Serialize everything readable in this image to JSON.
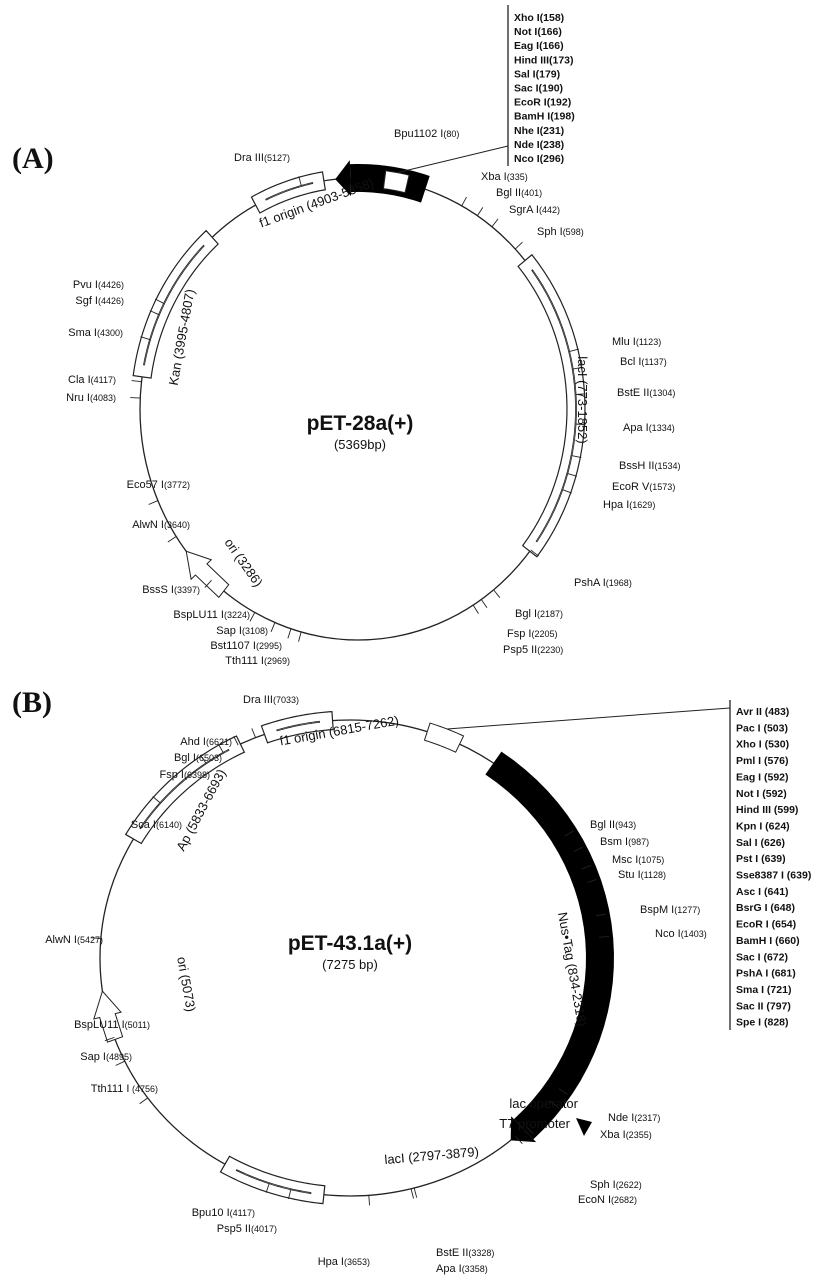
{
  "maps": [
    {
      "panel": "(A)",
      "name": "pET-28a(+)",
      "size": "(5369bp)",
      "mcs": [
        {
          "name": "Xho I",
          "pos": "(158)"
        },
        {
          "name": "Not I",
          "pos": "(166)"
        },
        {
          "name": "Eag I",
          "pos": "(166)"
        },
        {
          "name": "Hind III",
          "pos": "(173)"
        },
        {
          "name": "Sal I",
          "pos": "(179)"
        },
        {
          "name": "Sac I",
          "pos": "(190)"
        },
        {
          "name": "EcoR I",
          "pos": "(192)"
        },
        {
          "name": "BamH I",
          "pos": "(198)"
        },
        {
          "name": "Nhe I",
          "pos": "(231)"
        },
        {
          "name": "Nde I",
          "pos": "(238)"
        },
        {
          "name": "Nco I",
          "pos": "(296)"
        }
      ],
      "sites": [
        {
          "name": "Bpu1102 I",
          "pos": "(80)"
        },
        {
          "name": "Xba I",
          "pos": "(335)"
        },
        {
          "name": "Bgl II",
          "pos": "(401)"
        },
        {
          "name": "SgrA I",
          "pos": "(442)"
        },
        {
          "name": "Sph I",
          "pos": "(598)"
        },
        {
          "name": "Mlu I",
          "pos": "(1123)"
        },
        {
          "name": "Bcl I",
          "pos": "(1137)"
        },
        {
          "name": "BstE II",
          "pos": "(1304)"
        },
        {
          "name": "Apa I",
          "pos": "(1334)"
        },
        {
          "name": "BssH II",
          "pos": "(1534)"
        },
        {
          "name": "EcoR V",
          "pos": "(1573)"
        },
        {
          "name": "Hpa I",
          "pos": "(1629)"
        },
        {
          "name": "PshA I",
          "pos": "(1968)"
        },
        {
          "name": "Bgl I",
          "pos": "(2187)"
        },
        {
          "name": "Fsp I",
          "pos": "(2205)"
        },
        {
          "name": "Psp5 II",
          "pos": "(2230)"
        },
        {
          "name": "Tth111 I",
          "pos": "(2969)"
        },
        {
          "name": "Bst1107 I",
          "pos": "(2995)"
        },
        {
          "name": "Sap I",
          "pos": "(3108)"
        },
        {
          "name": "BspLU11 I",
          "pos": "(3224)"
        },
        {
          "name": "BssS I",
          "pos": "(3397)"
        },
        {
          "name": "AlwN I",
          "pos": "(3640)"
        },
        {
          "name": "Eco57 I",
          "pos": "(3772)"
        },
        {
          "name": "Nru I",
          "pos": "(4083)"
        },
        {
          "name": "Cla I",
          "pos": "(4117)"
        },
        {
          "name": "Sma I",
          "pos": "(4300)"
        },
        {
          "name": "Sgf I",
          "pos": "(4426)"
        },
        {
          "name": "Pvu I",
          "pos": "(4426)"
        },
        {
          "name": "Dra III",
          "pos": "(5127)"
        }
      ],
      "features": [
        "f1 origin (4903-5358)",
        "Kan (3995-4807)",
        "lacI (773-1852)",
        "ori (3286)"
      ]
    },
    {
      "panel": "(B)",
      "name": "pET-43.1a(+)",
      "size": "(7275 bp)",
      "mcs": [
        {
          "name": "Avr II",
          "pos": " (483)"
        },
        {
          "name": "Pac I",
          "pos": " (503)"
        },
        {
          "name": "Xho I",
          "pos": " (530)"
        },
        {
          "name": "Pml I",
          "pos": " (576)"
        },
        {
          "name": "Eag I",
          "pos": " (592)"
        },
        {
          "name": "Not I",
          "pos": " (592)"
        },
        {
          "name": "Hind III",
          "pos": " (599)"
        },
        {
          "name": "Kpn I",
          "pos": " (624)"
        },
        {
          "name": "Sal I",
          "pos": " (626)"
        },
        {
          "name": "Pst I",
          "pos": " (639)"
        },
        {
          "name": "Sse8387 I",
          "pos": " (639)"
        },
        {
          "name": "Asc I",
          "pos": " (641)"
        },
        {
          "name": "BsrG I",
          "pos": " (648)"
        },
        {
          "name": "EcoR I",
          "pos": " (654)"
        },
        {
          "name": "BamH I",
          "pos": " (660)"
        },
        {
          "name": "Sac I",
          "pos": " (672)"
        },
        {
          "name": "PshA I",
          "pos": " (681)"
        },
        {
          "name": "Sma I",
          "pos": " (721)"
        },
        {
          "name": "Sac II",
          "pos": " (797)"
        },
        {
          "name": "Spe I",
          "pos": " (828)"
        }
      ],
      "sites": [
        {
          "name": "Dra III",
          "pos": "(7033)"
        },
        {
          "name": "Ahd I",
          "pos": "(6621)"
        },
        {
          "name": "Bgl I",
          "pos": "(6503)"
        },
        {
          "name": "Fsp I",
          "pos": "(6398)"
        },
        {
          "name": "Sca I",
          "pos": "(6140)"
        },
        {
          "name": "AlwN I",
          "pos": "(5427)"
        },
        {
          "name": "BspLU11 I",
          "pos": "(5011)"
        },
        {
          "name": "Sap I",
          "pos": "(4895)"
        },
        {
          "name": "Tth111 I",
          "pos": " (4756)"
        },
        {
          "name": "Bpu10 I",
          "pos": "(4117)"
        },
        {
          "name": "Psp5 II",
          "pos": "(4017)"
        },
        {
          "name": "Hpa I",
          "pos": "(3653)"
        },
        {
          "name": "BstE II",
          "pos": "(3328)"
        },
        {
          "name": "Apa I",
          "pos": "(3358)"
        },
        {
          "name": "EcoN I",
          "pos": "(2682)"
        },
        {
          "name": "Sph I",
          "pos": "(2622)"
        },
        {
          "name": "Xba I",
          "pos": "(2355)"
        },
        {
          "name": "Nde I",
          "pos": "(2317)"
        },
        {
          "name": "Nco I",
          "pos": "(1403)"
        },
        {
          "name": "BspM I",
          "pos": "(1277)"
        },
        {
          "name": "Stu I",
          "pos": "(1128)"
        },
        {
          "name": "Msc I",
          "pos": "(1075)"
        },
        {
          "name": "Bsm I",
          "pos": "(987)"
        },
        {
          "name": "Bgl II",
          "pos": "(943)"
        }
      ],
      "features": [
        "f1 origin (6815-7262)",
        "Ap (5833-6693)",
        "Nus•Tag (834-2318)",
        "ori (5073)",
        "lacI (2797-3879)",
        "lac operator",
        "T7 promoter"
      ]
    }
  ]
}
